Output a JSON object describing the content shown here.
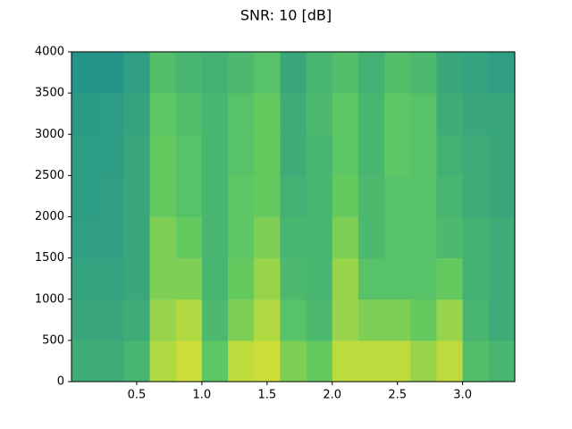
{
  "chart_data": {
    "type": "spectrogram",
    "title": "SNR: 10 [dB]",
    "xlim": [
      0,
      3.4
    ],
    "ylim": [
      0,
      4000
    ],
    "xticks": [
      0.5,
      {
        "value": 1,
        "label": "1.0"
      },
      1.5,
      {
        "value": 2,
        "label": "2.0"
      },
      2.5,
      {
        "value": 3,
        "label": "3.0"
      }
    ],
    "yticks": [
      0,
      500,
      1000,
      1500,
      2000,
      2500,
      3000,
      3500,
      4000
    ],
    "values": [
      [
        0.62,
        0.62,
        0.66,
        0.88,
        0.92,
        0.74,
        0.9,
        0.92,
        0.8,
        0.76,
        0.9,
        0.9,
        0.9,
        0.84,
        0.9,
        0.7,
        0.66
      ],
      [
        0.6,
        0.6,
        0.62,
        0.84,
        0.88,
        0.68,
        0.8,
        0.88,
        0.72,
        0.68,
        0.84,
        0.8,
        0.8,
        0.76,
        0.84,
        0.66,
        0.62
      ],
      [
        0.58,
        0.58,
        0.6,
        0.8,
        0.8,
        0.66,
        0.76,
        0.84,
        0.68,
        0.66,
        0.84,
        0.72,
        0.72,
        0.72,
        0.76,
        0.64,
        0.62
      ],
      [
        0.56,
        0.56,
        0.6,
        0.8,
        0.76,
        0.66,
        0.74,
        0.8,
        0.66,
        0.66,
        0.8,
        0.68,
        0.72,
        0.72,
        0.68,
        0.64,
        0.62
      ],
      [
        0.55,
        0.56,
        0.6,
        0.76,
        0.72,
        0.66,
        0.74,
        0.76,
        0.64,
        0.66,
        0.76,
        0.68,
        0.72,
        0.72,
        0.66,
        0.62,
        0.6
      ],
      [
        0.55,
        0.55,
        0.6,
        0.76,
        0.72,
        0.66,
        0.72,
        0.76,
        0.62,
        0.66,
        0.74,
        0.66,
        0.74,
        0.72,
        0.64,
        0.62,
        0.6
      ],
      [
        0.54,
        0.55,
        0.58,
        0.74,
        0.7,
        0.66,
        0.72,
        0.76,
        0.62,
        0.68,
        0.74,
        0.66,
        0.74,
        0.72,
        0.62,
        0.6,
        0.6
      ],
      [
        0.52,
        0.52,
        0.56,
        0.7,
        0.66,
        0.64,
        0.68,
        0.72,
        0.6,
        0.66,
        0.7,
        0.64,
        0.7,
        0.68,
        0.6,
        0.58,
        0.56
      ]
    ]
  }
}
